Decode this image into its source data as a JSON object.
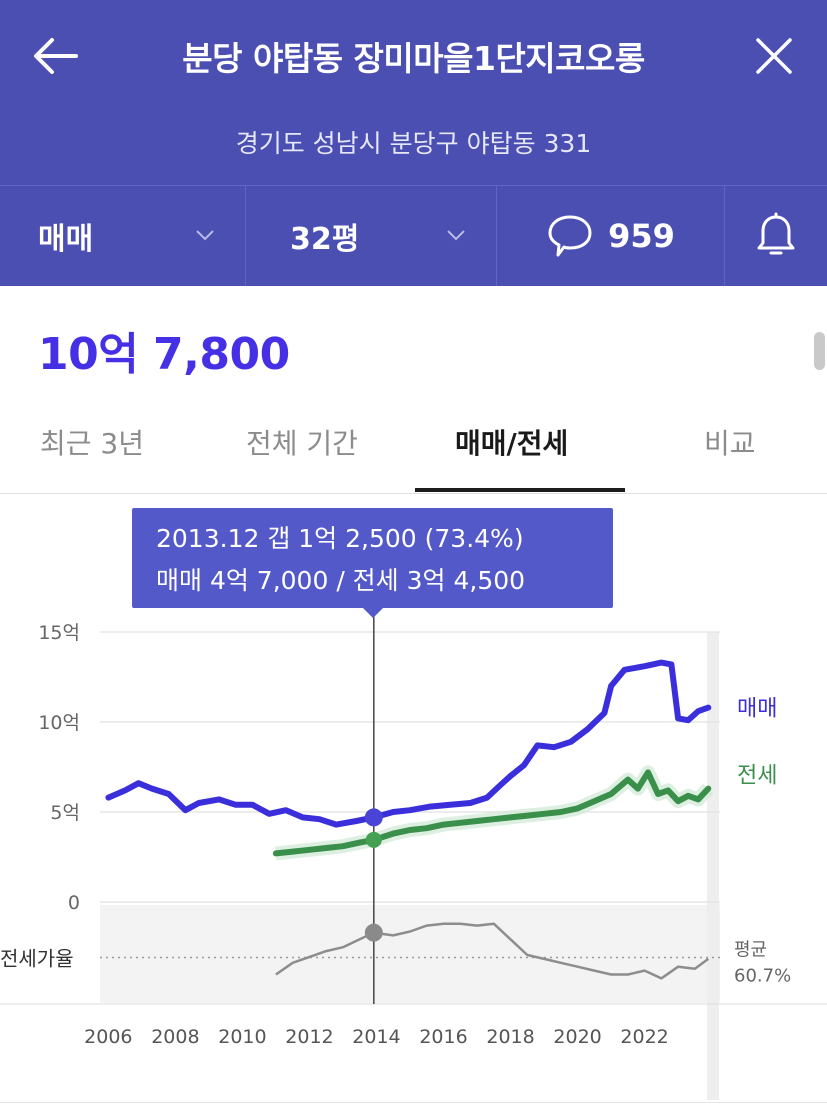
{
  "header": {
    "title": "분당 야탑동 장미마을1단지코오롱",
    "address": "경기도 성남시 분당구 야탑동 331",
    "back_icon": "back-arrow-icon",
    "close_icon": "close-icon"
  },
  "filters": {
    "trade_type": "매매",
    "size": "32평",
    "comment_count": "959",
    "comment_icon": "speech-bubble-icon",
    "alarm_icon": "bell-icon"
  },
  "price": "10억 7,800",
  "tabs": [
    {
      "label": "최근 3년",
      "active": false
    },
    {
      "label": "전체 기간",
      "active": false
    },
    {
      "label": "매매/전세",
      "active": true
    },
    {
      "label": "비교",
      "active": false
    }
  ],
  "tooltip": {
    "line1": "2013.12  갭 1억 2,500 (73.4%)",
    "line2": "매매 4억 7,000 / 전세 3억 4,500"
  },
  "chart_data": {
    "type": "line",
    "y_unit": "억",
    "ylim": [
      0,
      15
    ],
    "y_ticks": [
      {
        "value": 15,
        "label": "15억"
      },
      {
        "value": 10,
        "label": "10억"
      },
      {
        "value": 5,
        "label": "5억"
      },
      {
        "value": 0,
        "label": "0"
      }
    ],
    "x_ticks": [
      "2006",
      "2008",
      "2010",
      "2012",
      "2014",
      "2016",
      "2018",
      "2020",
      "2022"
    ],
    "xlim": [
      2005.9,
      2024.1
    ],
    "cursor_x": 2013.92,
    "colors": {
      "sale": "#3b2fdc",
      "jeonse": "#3a8f4a",
      "ratio": "#8d8d8d",
      "grid": "#e6e6e6"
    },
    "series": [
      {
        "name": "매매",
        "points": [
          [
            2006.0,
            5.8
          ],
          [
            2006.5,
            6.2
          ],
          [
            2006.9,
            6.6
          ],
          [
            2007.3,
            6.3
          ],
          [
            2007.8,
            6.0
          ],
          [
            2008.3,
            5.1
          ],
          [
            2008.7,
            5.5
          ],
          [
            2009.3,
            5.7
          ],
          [
            2009.8,
            5.4
          ],
          [
            2010.3,
            5.4
          ],
          [
            2010.8,
            4.9
          ],
          [
            2011.3,
            5.1
          ],
          [
            2011.8,
            4.7
          ],
          [
            2012.3,
            4.6
          ],
          [
            2012.8,
            4.3
          ],
          [
            2013.4,
            4.5
          ],
          [
            2013.92,
            4.7
          ],
          [
            2014.5,
            5.0
          ],
          [
            2015.0,
            5.1
          ],
          [
            2015.6,
            5.3
          ],
          [
            2016.2,
            5.4
          ],
          [
            2016.8,
            5.5
          ],
          [
            2017.3,
            5.8
          ],
          [
            2017.7,
            6.5
          ],
          [
            2018.0,
            7.0
          ],
          [
            2018.4,
            7.6
          ],
          [
            2018.8,
            8.7
          ],
          [
            2019.3,
            8.6
          ],
          [
            2019.8,
            8.9
          ],
          [
            2020.3,
            9.6
          ],
          [
            2020.8,
            10.5
          ],
          [
            2021.0,
            12.0
          ],
          [
            2021.4,
            12.9
          ],
          [
            2022.0,
            13.1
          ],
          [
            2022.5,
            13.3
          ],
          [
            2022.8,
            13.2
          ],
          [
            2023.0,
            10.2
          ],
          [
            2023.3,
            10.1
          ],
          [
            2023.6,
            10.6
          ],
          [
            2023.9,
            10.8
          ]
        ]
      },
      {
        "name": "전세",
        "points": [
          [
            2011.0,
            2.7
          ],
          [
            2011.5,
            2.8
          ],
          [
            2012.0,
            2.9
          ],
          [
            2012.5,
            3.0
          ],
          [
            2013.0,
            3.1
          ],
          [
            2013.5,
            3.3
          ],
          [
            2013.92,
            3.45
          ],
          [
            2014.5,
            3.8
          ],
          [
            2015.0,
            4.0
          ],
          [
            2015.5,
            4.1
          ],
          [
            2016.0,
            4.3
          ],
          [
            2016.5,
            4.4
          ],
          [
            2017.0,
            4.5
          ],
          [
            2017.5,
            4.6
          ],
          [
            2018.0,
            4.7
          ],
          [
            2018.5,
            4.8
          ],
          [
            2019.0,
            4.9
          ],
          [
            2019.5,
            5.0
          ],
          [
            2020.0,
            5.2
          ],
          [
            2020.5,
            5.6
          ],
          [
            2021.0,
            6.0
          ],
          [
            2021.5,
            6.8
          ],
          [
            2021.8,
            6.3
          ],
          [
            2022.1,
            7.2
          ],
          [
            2022.4,
            6.0
          ],
          [
            2022.7,
            6.2
          ],
          [
            2023.0,
            5.6
          ],
          [
            2023.3,
            5.9
          ],
          [
            2023.6,
            5.7
          ],
          [
            2023.9,
            6.3
          ]
        ]
      }
    ],
    "ratio": {
      "label": "전세가율",
      "average_label": "평균\n60.7%",
      "average": 60.7,
      "ylim": [
        40,
        85
      ],
      "points": [
        [
          2011.0,
          52
        ],
        [
          2011.5,
          58
        ],
        [
          2012.0,
          61
        ],
        [
          2012.5,
          64
        ],
        [
          2013.0,
          66
        ],
        [
          2013.5,
          70
        ],
        [
          2013.92,
          73.4
        ],
        [
          2014.5,
          72
        ],
        [
          2015.0,
          74
        ],
        [
          2015.5,
          77
        ],
        [
          2016.0,
          78
        ],
        [
          2016.5,
          78
        ],
        [
          2017.0,
          77
        ],
        [
          2017.5,
          78
        ],
        [
          2018.0,
          70
        ],
        [
          2018.5,
          62
        ],
        [
          2019.0,
          60
        ],
        [
          2019.5,
          58
        ],
        [
          2020.0,
          56
        ],
        [
          2020.5,
          54
        ],
        [
          2021.0,
          52
        ],
        [
          2021.5,
          52
        ],
        [
          2022.0,
          54
        ],
        [
          2022.5,
          50
        ],
        [
          2023.0,
          56
        ],
        [
          2023.5,
          55
        ],
        [
          2023.9,
          60
        ]
      ]
    }
  }
}
